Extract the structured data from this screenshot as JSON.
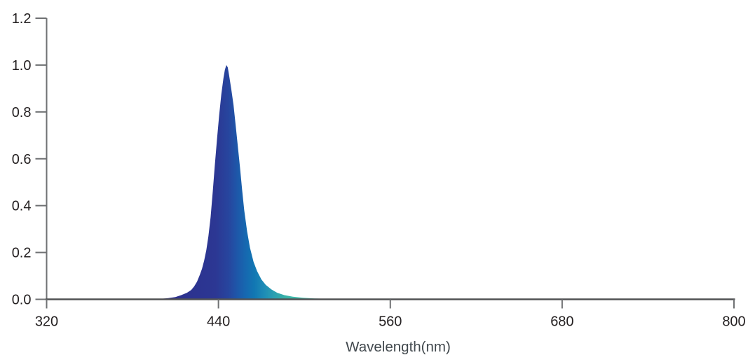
{
  "chart_data": {
    "type": "area",
    "title": "",
    "xlabel": "Wavelength(nm)",
    "ylabel": "",
    "xlim": [
      320,
      800
    ],
    "ylim": [
      0,
      1.2
    ],
    "x_ticks": [
      320,
      440,
      560,
      680,
      800
    ],
    "x_tick_labels": [
      "320",
      "440",
      "560",
      "680",
      "800"
    ],
    "y_ticks": [
      0.0,
      0.2,
      0.4,
      0.6,
      0.8,
      1.0,
      1.2
    ],
    "y_tick_labels": [
      "0.0",
      "0.2",
      "0.4",
      "0.6",
      "0.8",
      "1.0",
      "1.2"
    ],
    "grid": false,
    "legend": false,
    "description": "Normalized relative intensity spectrum of a royal-blue LED, single narrow peak at ~445 nm (FWHM ~20 nm) with a long teal-fading tail toward ~530 nm",
    "series": [
      {
        "x": [
          400,
          405,
          410,
          414,
          418,
          421,
          423,
          425,
          427,
          428.5,
          430,
          431.5,
          433,
          434.5,
          436,
          437.5,
          439,
          440.5,
          442,
          443.5,
          444.5,
          445.5,
          446.5,
          447.5,
          449,
          450.5,
          452,
          453.5,
          455,
          456.5,
          458,
          460,
          462,
          464.5,
          467,
          470,
          473,
          477,
          481,
          486,
          492,
          499,
          507,
          516,
          526,
          540,
          560
        ],
        "y": [
          0.002,
          0.005,
          0.01,
          0.018,
          0.028,
          0.04,
          0.055,
          0.075,
          0.105,
          0.13,
          0.165,
          0.21,
          0.27,
          0.35,
          0.46,
          0.575,
          0.685,
          0.785,
          0.875,
          0.945,
          0.98,
          1.0,
          0.99,
          0.955,
          0.895,
          0.83,
          0.745,
          0.655,
          0.565,
          0.47,
          0.38,
          0.29,
          0.22,
          0.16,
          0.12,
          0.085,
          0.062,
          0.042,
          0.028,
          0.018,
          0.011,
          0.007,
          0.004,
          0.0025,
          0.0015,
          0.0008,
          0
        ]
      }
    ],
    "gradient": {
      "direction": "horizontal",
      "stops": [
        {
          "at": 400,
          "color": "#2D2E8C"
        },
        {
          "at": 438,
          "color": "#2C3793"
        },
        {
          "at": 447,
          "color": "#27459E"
        },
        {
          "at": 453,
          "color": "#1E57A9"
        },
        {
          "at": 459,
          "color": "#1668B0"
        },
        {
          "at": 465,
          "color": "#1277B3"
        },
        {
          "at": 472,
          "color": "#1E8CB6"
        },
        {
          "at": 479,
          "color": "#2CA0B1"
        },
        {
          "at": 487,
          "color": "#38B1A7"
        },
        {
          "at": 497,
          "color": "#42BFAC"
        },
        {
          "at": 515,
          "color": "#4ECBBB"
        }
      ]
    }
  },
  "colors": {
    "background": "#ffffff",
    "y_axis_line": "#6f7173",
    "x_axis_line": "#515254",
    "tick_mark": "#6f7173",
    "tick_label": "#231f20",
    "axis_title": "#41484d"
  }
}
